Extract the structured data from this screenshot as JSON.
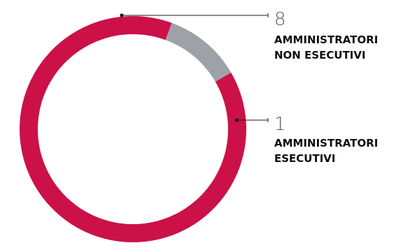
{
  "chart_data": {
    "type": "pie",
    "donut": true,
    "categories": [
      "AMMINISTRATORI NON ESECUTIVI",
      "AMMINISTRATORI ESECUTIVI"
    ],
    "values": [
      8,
      1
    ],
    "value_labels": [
      "8",
      "1"
    ],
    "label_lines": [
      [
        "AMMINISTRATORI",
        "NON ESECUTIVI"
      ],
      [
        "AMMINISTRATORI",
        "ESECUTIVI"
      ]
    ],
    "colors": [
      "#cc1148",
      "#9ea2a8"
    ],
    "title": "",
    "legend": "none"
  }
}
